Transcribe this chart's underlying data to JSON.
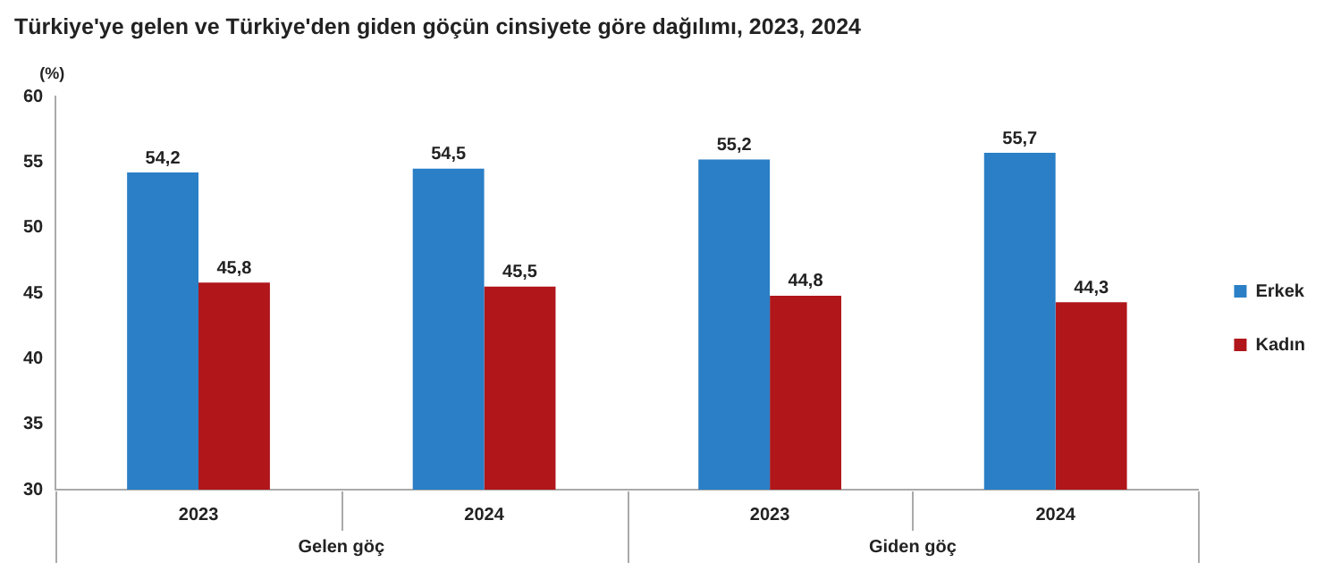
{
  "chart_data": {
    "type": "bar",
    "title": "Türkiye'ye gelen ve Türkiye'den giden göçün cinsiyete göre dağılımı, 2023, 2024",
    "ylabel": "(%)",
    "categories": [
      "2023",
      "2024",
      "2023",
      "2024"
    ],
    "annotations": [
      "Gelen göç",
      "Giden göç"
    ],
    "series": [
      {
        "name": "Erkek",
        "color": "#2a7fc6",
        "values": [
          54.2,
          54.5,
          55.2,
          55.7
        ],
        "value_labels": [
          "54,2",
          "54,5",
          "55,2",
          "55,7"
        ]
      },
      {
        "name": "Kadın",
        "color": "#b0161a",
        "values": [
          45.8,
          45.5,
          44.8,
          44.3
        ],
        "value_labels": [
          "45,8",
          "45,5",
          "44,8",
          "44,3"
        ]
      }
    ],
    "ylim": [
      30,
      60
    ],
    "yticks": [
      30,
      35,
      40,
      45,
      50,
      55,
      60
    ],
    "grid": false,
    "legend": "right"
  }
}
